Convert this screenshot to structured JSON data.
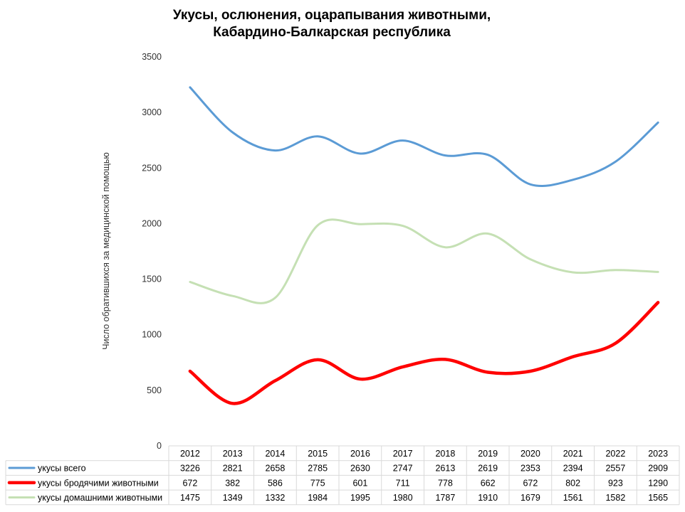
{
  "chart_data": {
    "type": "line",
    "title": "Укусы, ослюнения, оцарапывания животными,",
    "subtitle": "Кабардино-Балкарская республика",
    "xlabel": "",
    "ylabel": "Число обратившихся за медицинской помощью",
    "ylim": [
      0,
      3500
    ],
    "yticks": [
      0,
      500,
      1000,
      1500,
      2000,
      2500,
      3000,
      3500
    ],
    "grid": false,
    "legend": "data-table-bottom",
    "categories": [
      "2012",
      "2013",
      "2014",
      "2015",
      "2016",
      "2017",
      "2018",
      "2019",
      "2020",
      "2021",
      "2022",
      "2023"
    ],
    "series": [
      {
        "name": "укусы всего",
        "color": "#5b9bd5",
        "values": [
          3226,
          2821,
          2658,
          2785,
          2630,
          2747,
          2613,
          2619,
          2353,
          2394,
          2557,
          2909
        ]
      },
      {
        "name": "укусы бродячими животными",
        "color": "#ff0000",
        "values": [
          672,
          382,
          586,
          775,
          601,
          711,
          778,
          662,
          672,
          802,
          923,
          1290
        ]
      },
      {
        "name": "укусы домашними животными",
        "color": "#c5e0b4",
        "values": [
          1475,
          1349,
          1332,
          1984,
          1995,
          1980,
          1787,
          1910,
          1679,
          1561,
          1582,
          1565
        ]
      }
    ]
  }
}
